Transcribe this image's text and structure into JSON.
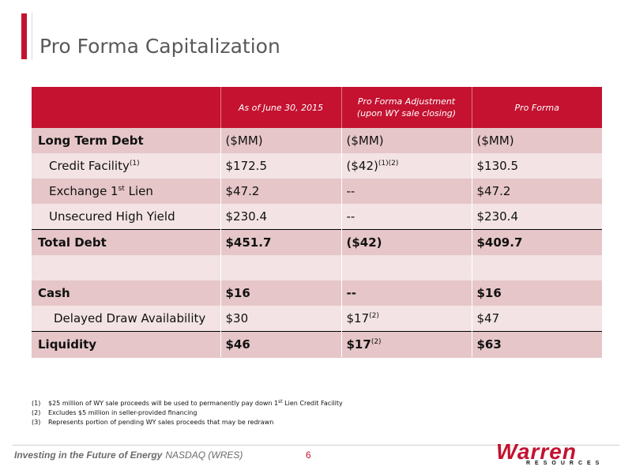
{
  "title": "Pro Forma Capitalization",
  "table": {
    "headers": {
      "col1": "",
      "col2": "As of June 30, 2015",
      "col3_line1": "Pro Forma Adjustment",
      "col3_line2": "(upon WY sale closing)",
      "col4": "Pro Forma"
    },
    "rows": {
      "ltd": {
        "label": "Long Term Debt",
        "v1": "($MM)",
        "v2": "($MM)",
        "v3": "($MM)"
      },
      "credit": {
        "label": "Credit Facility",
        "label_sup": "(1)",
        "v1": "$172.5",
        "v2": "($42)",
        "v2_sup": "(1)(2)",
        "v3": "$130.5"
      },
      "exchange": {
        "label_pre": "Exchange 1",
        "label_sup": "st",
        "label_post": " Lien",
        "v1": "$47.2",
        "v2": "--",
        "v3": "$47.2"
      },
      "unsecured": {
        "label": "Unsecured High Yield",
        "v1": "$230.4",
        "v2": "--",
        "v3": "$230.4"
      },
      "total": {
        "label": "Total Debt",
        "v1": "$451.7",
        "v2": "($42)",
        "v3": "$409.7"
      },
      "cash": {
        "label": "Cash",
        "v1": "$16",
        "v2": "--",
        "v3": "$16"
      },
      "delayed": {
        "label": "Delayed Draw Availability",
        "v1": "$30",
        "v2": "$17",
        "v2_sup": "(2)",
        "v3": "$47"
      },
      "liquidity": {
        "label": "Liquidity",
        "v1": "$46",
        "v2": "$17",
        "v2_sup": "(2)",
        "v3": "$63"
      }
    }
  },
  "footnotes": [
    {
      "num": "(1)",
      "text_pre": "$25 million of WY sale proceeds will be used to permanently pay down 1",
      "sup": "st",
      "text_post": " Lien Credit Facility"
    },
    {
      "num": "(2)",
      "text": "Excludes $5 million in seller-provided financing"
    },
    {
      "num": "(3)",
      "text": "Represents portion of pending WY sales proceeds that may be redrawn"
    }
  ],
  "footer": {
    "tagline": "Investing in the Future of Energy",
    "ticker": "NASDAQ (WRES)",
    "page": "6"
  },
  "logo": {
    "word": "Warren",
    "sub": "RESOURCES"
  },
  "colors": {
    "accent": "#c41230",
    "row_dark": "#e6c6c8",
    "row_light": "#f3e3e4"
  }
}
